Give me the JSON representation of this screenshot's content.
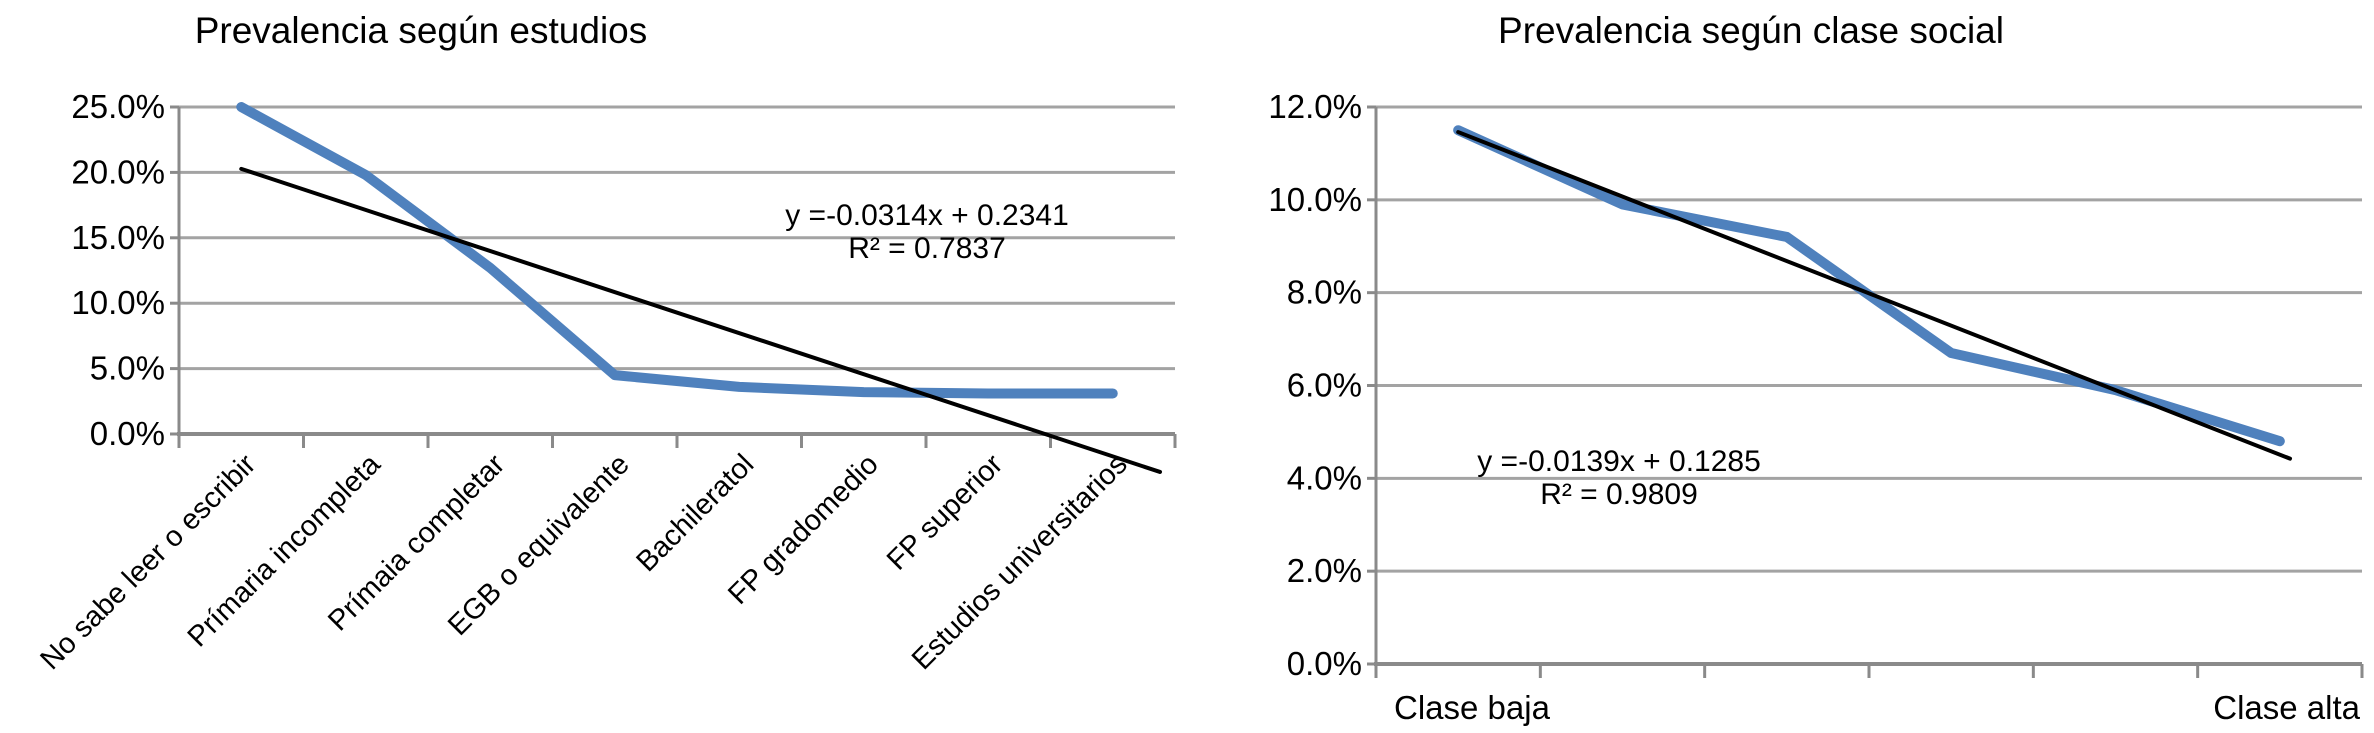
{
  "colors": {
    "series_blue": "#4F81BD",
    "trendline_black": "#000000",
    "gridline_gray": "#A3A3A3",
    "axis_gray": "#8A8A8A",
    "text_black": "#000000",
    "background": "#FFFFFF"
  },
  "chart_data": [
    {
      "id": "estudios",
      "type": "line",
      "title": "Prevalencia según estudios",
      "categories": [
        "No sabe leer o escribir",
        "Prímaria incompleta",
        "Prímaia completar",
        "EGB o equivalente",
        "Bachileratol",
        "FP gradomedio",
        "FP superior",
        "Estudios universitarios"
      ],
      "series": [
        {
          "name": "Prevalencia",
          "values_pct": [
            25.0,
            19.8,
            12.7,
            4.5,
            3.6,
            3.2,
            3.1,
            3.1
          ]
        }
      ],
      "ylim_pct": [
        0,
        25
      ],
      "y_step_pct": 5,
      "y_tick_labels": [
        "0.0%",
        "5.0%",
        "10.0%",
        "15.0%",
        "20.0%",
        "25.0%"
      ],
      "grid": true,
      "legend": "none",
      "x_label_style": "rotated-45deg",
      "trendline": {
        "type": "linear",
        "slope": -0.0314,
        "intercept": 0.2341,
        "r2": 0.7837,
        "equation_label": "y =-0.0314x + 0.2341",
        "r2_label": "R² = 0.7837"
      }
    },
    {
      "id": "clase-social",
      "type": "line",
      "title": "Prevalencia según clase social",
      "categories": [
        "Clase baja",
        "",
        "",
        "",
        "",
        "Clase alta"
      ],
      "series": [
        {
          "name": "Prevalencia",
          "values_pct": [
            11.5,
            9.9,
            9.2,
            6.7,
            5.9,
            4.8
          ]
        }
      ],
      "ylim_pct": [
        0,
        12
      ],
      "y_step_pct": 2,
      "y_tick_labels": [
        "0.0%",
        "2.0%",
        "4.0%",
        "6.0%",
        "8.0%",
        "10.0%",
        "12.0%"
      ],
      "grid": true,
      "legend": "none",
      "x_label_style": "first-last-only",
      "trendline": {
        "type": "linear",
        "slope": -0.0139,
        "intercept": 0.1285,
        "r2": 0.9809,
        "equation_label": "y =-0.0139x + 0.1285",
        "r2_label": "R² = 0.9809"
      }
    }
  ]
}
